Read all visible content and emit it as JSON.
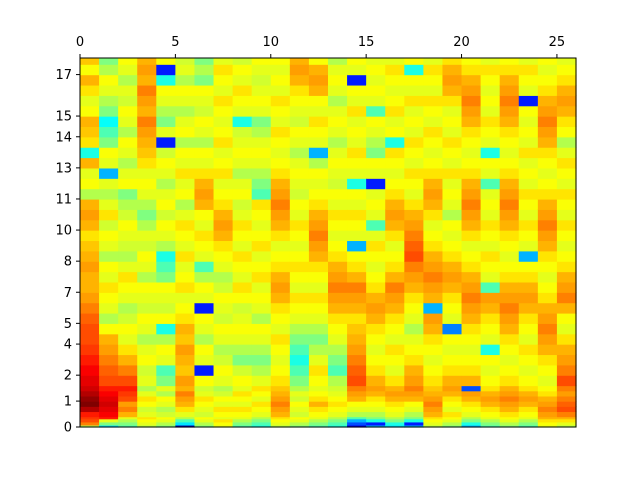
{
  "chart_data": {
    "type": "heatmap",
    "colormap": "jet",
    "title": "",
    "xlabel": "",
    "ylabel": "",
    "x_axis_position": "top",
    "xlim": [
      0,
      26
    ],
    "x_ticks": [
      0,
      5,
      10,
      15,
      20,
      25
    ],
    "y_ticks": [
      0,
      1,
      2,
      4,
      5,
      7,
      8,
      10,
      11,
      13,
      14,
      15,
      17
    ],
    "y_bin_edges": [
      0,
      0.1,
      0.25,
      0.4,
      0.5,
      0.75,
      1.0,
      1.25,
      1.5,
      1.75,
      2.0,
      2.5,
      3.0,
      3.5,
      4.0,
      4.5,
      5.0,
      5.5,
      6.0,
      6.5,
      7.0,
      7.5,
      8.0,
      8.5,
      9.0,
      9.5,
      10.0,
      10.5,
      11.0,
      11.5,
      12.0,
      12.5,
      13.0,
      13.5,
      14.0,
      14.5,
      15.0,
      15.5,
      16.0,
      16.5,
      17.0,
      17.5,
      17.8
    ],
    "column_count": 26,
    "value_range": [
      0,
      1
    ],
    "columns": [
      [
        0.55,
        0.75,
        0.8,
        0.82,
        0.85,
        0.95,
        1.0,
        0.98,
        0.95,
        0.92,
        0.9,
        0.88,
        0.85,
        0.82,
        0.8,
        0.8,
        0.78,
        0.75,
        0.72,
        0.7,
        0.7,
        0.72,
        0.7,
        0.68,
        0.65,
        0.7,
        0.72,
        0.7,
        0.55,
        0.62,
        0.6,
        0.7,
        0.4,
        0.65,
        0.68,
        0.7,
        0.62,
        0.6,
        0.65,
        0.7,
        0.62,
        0.68
      ],
      [
        0.35,
        0.5,
        0.6,
        0.85,
        0.88,
        0.9,
        0.92,
        0.9,
        0.88,
        0.85,
        0.8,
        0.78,
        0.75,
        0.72,
        0.7,
        0.62,
        0.55,
        0.6,
        0.62,
        0.65,
        0.6,
        0.62,
        0.55,
        0.6,
        0.62,
        0.58,
        0.65,
        0.6,
        0.55,
        0.6,
        0.3,
        0.6,
        0.62,
        0.5,
        0.45,
        0.38,
        0.5,
        0.55,
        0.6,
        0.62,
        0.55,
        0.5
      ],
      [
        0.45,
        0.5,
        0.55,
        0.6,
        0.7,
        0.75,
        0.72,
        0.8,
        0.82,
        0.85,
        0.8,
        0.75,
        0.7,
        0.65,
        0.6,
        0.62,
        0.58,
        0.55,
        0.6,
        0.62,
        0.65,
        0.6,
        0.55,
        0.58,
        0.6,
        0.62,
        0.58,
        0.55,
        0.5,
        0.62,
        0.6,
        0.55,
        0.6,
        0.62,
        0.55,
        0.6,
        0.62,
        0.58,
        0.6,
        0.55,
        0.6,
        0.62
      ],
      [
        0.55,
        0.6,
        0.62,
        0.65,
        0.6,
        0.58,
        0.62,
        0.65,
        0.6,
        0.55,
        0.6,
        0.58,
        0.62,
        0.6,
        0.55,
        0.6,
        0.62,
        0.58,
        0.6,
        0.62,
        0.55,
        0.6,
        0.62,
        0.58,
        0.6,
        0.55,
        0.5,
        0.55,
        0.6,
        0.62,
        0.6,
        0.65,
        0.68,
        0.7,
        0.72,
        0.75,
        0.7,
        0.72,
        0.75,
        0.7,
        0.72,
        0.7
      ],
      [
        0.5,
        0.55,
        0.6,
        0.62,
        0.58,
        0.55,
        0.6,
        0.62,
        0.55,
        0.6,
        0.5,
        0.45,
        0.6,
        0.62,
        0.55,
        0.4,
        0.62,
        0.58,
        0.6,
        0.62,
        0.5,
        0.45,
        0.4,
        0.55,
        0.6,
        0.62,
        0.58,
        0.62,
        0.6,
        0.55,
        0.6,
        0.62,
        0.58,
        0.15,
        0.6,
        0.5,
        0.55,
        0.6,
        0.62,
        0.4,
        0.15,
        0.62
      ],
      [
        0.05,
        0.35,
        0.45,
        0.55,
        0.6,
        0.65,
        0.7,
        0.72,
        0.75,
        0.7,
        0.72,
        0.68,
        0.7,
        0.72,
        0.68,
        0.7,
        0.65,
        0.62,
        0.6,
        0.65,
        0.62,
        0.6,
        0.65,
        0.6,
        0.62,
        0.65,
        0.6,
        0.55,
        0.62,
        0.6,
        0.65,
        0.6,
        0.62,
        0.55,
        0.62,
        0.6,
        0.55,
        0.6,
        0.62,
        0.55,
        0.6,
        0.58
      ],
      [
        0.5,
        0.55,
        0.6,
        0.62,
        0.58,
        0.6,
        0.62,
        0.65,
        0.6,
        0.58,
        0.62,
        0.15,
        0.6,
        0.62,
        0.55,
        0.6,
        0.62,
        0.15,
        0.6,
        0.62,
        0.55,
        0.45,
        0.6,
        0.62,
        0.65,
        0.6,
        0.62,
        0.7,
        0.72,
        0.7,
        0.65,
        0.6,
        0.62,
        0.55,
        0.6,
        0.62,
        0.58,
        0.6,
        0.62,
        0.5,
        0.55,
        0.5
      ],
      [
        0.6,
        0.62,
        0.65,
        0.6,
        0.62,
        0.65,
        0.6,
        0.62,
        0.58,
        0.55,
        0.6,
        0.62,
        0.58,
        0.55,
        0.6,
        0.62,
        0.58,
        0.6,
        0.62,
        0.58,
        0.55,
        0.6,
        0.62,
        0.65,
        0.7,
        0.72,
        0.7,
        0.65,
        0.62,
        0.6,
        0.65,
        0.62,
        0.6,
        0.65,
        0.62,
        0.6,
        0.62,
        0.65,
        0.6,
        0.62,
        0.65,
        0.6
      ],
      [
        0.45,
        0.5,
        0.55,
        0.6,
        0.62,
        0.65,
        0.6,
        0.62,
        0.65,
        0.6,
        0.62,
        0.58,
        0.5,
        0.55,
        0.6,
        0.62,
        0.6,
        0.58,
        0.62,
        0.65,
        0.6,
        0.62,
        0.65,
        0.6,
        0.62,
        0.65,
        0.6,
        0.58,
        0.62,
        0.6,
        0.55,
        0.6,
        0.62,
        0.6,
        0.58,
        0.4,
        0.6,
        0.62,
        0.65,
        0.6,
        0.62,
        0.58
      ],
      [
        0.4,
        0.45,
        0.5,
        0.55,
        0.6,
        0.62,
        0.65,
        0.6,
        0.62,
        0.65,
        0.6,
        0.55,
        0.5,
        0.55,
        0.6,
        0.62,
        0.55,
        0.6,
        0.62,
        0.6,
        0.65,
        0.62,
        0.6,
        0.65,
        0.62,
        0.6,
        0.62,
        0.65,
        0.45,
        0.5,
        0.55,
        0.6,
        0.62,
        0.6,
        0.55,
        0.5,
        0.6,
        0.62,
        0.6,
        0.58,
        0.6,
        0.62
      ],
      [
        0.55,
        0.6,
        0.62,
        0.65,
        0.7,
        0.72,
        0.75,
        0.72,
        0.7,
        0.68,
        0.65,
        0.62,
        0.6,
        0.62,
        0.65,
        0.6,
        0.62,
        0.65,
        0.7,
        0.72,
        0.7,
        0.65,
        0.62,
        0.6,
        0.65,
        0.7,
        0.72,
        0.75,
        0.72,
        0.7,
        0.65,
        0.62,
        0.6,
        0.62,
        0.65,
        0.6,
        0.62,
        0.65,
        0.6,
        0.62,
        0.6,
        0.62
      ],
      [
        0.5,
        0.55,
        0.6,
        0.62,
        0.58,
        0.6,
        0.62,
        0.58,
        0.6,
        0.55,
        0.5,
        0.45,
        0.4,
        0.45,
        0.5,
        0.55,
        0.6,
        0.62,
        0.65,
        0.6,
        0.62,
        0.65,
        0.62,
        0.6,
        0.62,
        0.65,
        0.6,
        0.62,
        0.58,
        0.6,
        0.62,
        0.6,
        0.55,
        0.6,
        0.62,
        0.58,
        0.6,
        0.62,
        0.65,
        0.7,
        0.72,
        0.7
      ],
      [
        0.45,
        0.5,
        0.55,
        0.6,
        0.62,
        0.65,
        0.7,
        0.65,
        0.62,
        0.6,
        0.62,
        0.65,
        0.6,
        0.55,
        0.5,
        0.55,
        0.6,
        0.62,
        0.65,
        0.6,
        0.62,
        0.65,
        0.7,
        0.72,
        0.75,
        0.72,
        0.7,
        0.65,
        0.62,
        0.6,
        0.62,
        0.55,
        0.3,
        0.6,
        0.62,
        0.65,
        0.6,
        0.62,
        0.7,
        0.72,
        0.7,
        0.62
      ],
      [
        0.4,
        0.45,
        0.5,
        0.55,
        0.6,
        0.62,
        0.65,
        0.62,
        0.6,
        0.58,
        0.55,
        0.45,
        0.5,
        0.55,
        0.6,
        0.62,
        0.65,
        0.7,
        0.72,
        0.75,
        0.72,
        0.7,
        0.65,
        0.62,
        0.6,
        0.62,
        0.65,
        0.6,
        0.62,
        0.58,
        0.6,
        0.62,
        0.6,
        0.55,
        0.6,
        0.62,
        0.6,
        0.55,
        0.6,
        0.62,
        0.6,
        0.55
      ],
      [
        0.1,
        0.2,
        0.3,
        0.45,
        0.55,
        0.6,
        0.62,
        0.7,
        0.72,
        0.75,
        0.8,
        0.78,
        0.75,
        0.72,
        0.7,
        0.68,
        0.65,
        0.7,
        0.72,
        0.75,
        0.7,
        0.65,
        0.62,
        0.3,
        0.6,
        0.62,
        0.65,
        0.6,
        0.62,
        0.4,
        0.6,
        0.62,
        0.65,
        0.6,
        0.62,
        0.6,
        0.65,
        0.6,
        0.62,
        0.15,
        0.6,
        0.62
      ],
      [
        0.3,
        0.15,
        0.4,
        0.5,
        0.55,
        0.6,
        0.62,
        0.65,
        0.7,
        0.72,
        0.7,
        0.65,
        0.62,
        0.6,
        0.62,
        0.65,
        0.7,
        0.72,
        0.7,
        0.65,
        0.62,
        0.6,
        0.62,
        0.65,
        0.6,
        0.45,
        0.6,
        0.62,
        0.6,
        0.15,
        0.6,
        0.62,
        0.5,
        0.55,
        0.6,
        0.62,
        0.45,
        0.6,
        0.62,
        0.6,
        0.62,
        0.6
      ],
      [
        0.35,
        0.4,
        0.5,
        0.55,
        0.6,
        0.62,
        0.65,
        0.7,
        0.72,
        0.7,
        0.65,
        0.6,
        0.62,
        0.65,
        0.6,
        0.62,
        0.65,
        0.7,
        0.72,
        0.75,
        0.7,
        0.65,
        0.62,
        0.6,
        0.65,
        0.7,
        0.72,
        0.7,
        0.65,
        0.62,
        0.6,
        0.62,
        0.65,
        0.4,
        0.62,
        0.6,
        0.65,
        0.62,
        0.6,
        0.62,
        0.65,
        0.6
      ],
      [
        0.3,
        0.15,
        0.4,
        0.5,
        0.55,
        0.6,
        0.62,
        0.7,
        0.72,
        0.75,
        0.72,
        0.7,
        0.65,
        0.62,
        0.6,
        0.55,
        0.6,
        0.62,
        0.65,
        0.7,
        0.72,
        0.75,
        0.8,
        0.78,
        0.75,
        0.72,
        0.7,
        0.65,
        0.6,
        0.62,
        0.65,
        0.6,
        0.62,
        0.65,
        0.6,
        0.62,
        0.6,
        0.65,
        0.6,
        0.62,
        0.4,
        0.62
      ],
      [
        0.55,
        0.6,
        0.62,
        0.65,
        0.7,
        0.72,
        0.75,
        0.72,
        0.7,
        0.68,
        0.65,
        0.62,
        0.6,
        0.62,
        0.65,
        0.7,
        0.72,
        0.3,
        0.7,
        0.72,
        0.75,
        0.72,
        0.7,
        0.65,
        0.62,
        0.6,
        0.65,
        0.7,
        0.72,
        0.7,
        0.65,
        0.62,
        0.6,
        0.62,
        0.65,
        0.6,
        0.62,
        0.65,
        0.6,
        0.62,
        0.65,
        0.6
      ],
      [
        0.5,
        0.55,
        0.6,
        0.62,
        0.65,
        0.6,
        0.62,
        0.65,
        0.7,
        0.72,
        0.7,
        0.65,
        0.62,
        0.6,
        0.62,
        0.25,
        0.6,
        0.62,
        0.65,
        0.7,
        0.72,
        0.7,
        0.65,
        0.62,
        0.6,
        0.62,
        0.55,
        0.6,
        0.62,
        0.6,
        0.65,
        0.6,
        0.62,
        0.65,
        0.6,
        0.62,
        0.6,
        0.65,
        0.7,
        0.72,
        0.7,
        0.65
      ],
      [
        0.3,
        0.4,
        0.5,
        0.55,
        0.6,
        0.62,
        0.65,
        0.7,
        0.72,
        0.2,
        0.7,
        0.65,
        0.62,
        0.6,
        0.62,
        0.65,
        0.7,
        0.72,
        0.75,
        0.72,
        0.7,
        0.65,
        0.62,
        0.6,
        0.65,
        0.7,
        0.72,
        0.75,
        0.72,
        0.7,
        0.65,
        0.62,
        0.6,
        0.62,
        0.65,
        0.7,
        0.72,
        0.75,
        0.72,
        0.7,
        0.65,
        0.62
      ],
      [
        0.45,
        0.5,
        0.55,
        0.6,
        0.62,
        0.65,
        0.7,
        0.72,
        0.7,
        0.65,
        0.62,
        0.6,
        0.62,
        0.4,
        0.6,
        0.62,
        0.65,
        0.7,
        0.72,
        0.45,
        0.6,
        0.62,
        0.65,
        0.6,
        0.62,
        0.65,
        0.6,
        0.62,
        0.6,
        0.45,
        0.6,
        0.62,
        0.4,
        0.6,
        0.62,
        0.65,
        0.6,
        0.62,
        0.6,
        0.62,
        0.65,
        0.6
      ],
      [
        0.5,
        0.55,
        0.6,
        0.62,
        0.65,
        0.7,
        0.72,
        0.75,
        0.72,
        0.7,
        0.65,
        0.62,
        0.6,
        0.62,
        0.65,
        0.7,
        0.72,
        0.75,
        0.72,
        0.7,
        0.65,
        0.62,
        0.6,
        0.62,
        0.65,
        0.7,
        0.72,
        0.75,
        0.72,
        0.7,
        0.65,
        0.62,
        0.6,
        0.62,
        0.65,
        0.7,
        0.72,
        0.75,
        0.72,
        0.7,
        0.65,
        0.62
      ],
      [
        0.45,
        0.5,
        0.55,
        0.6,
        0.62,
        0.65,
        0.7,
        0.72,
        0.7,
        0.65,
        0.62,
        0.6,
        0.62,
        0.65,
        0.6,
        0.62,
        0.65,
        0.7,
        0.72,
        0.7,
        0.65,
        0.62,
        0.3,
        0.6,
        0.62,
        0.65,
        0.6,
        0.62,
        0.65,
        0.6,
        0.62,
        0.6,
        0.65,
        0.6,
        0.62,
        0.6,
        0.62,
        0.15,
        0.6,
        0.62,
        0.65,
        0.6
      ],
      [
        0.6,
        0.62,
        0.65,
        0.7,
        0.72,
        0.75,
        0.72,
        0.7,
        0.65,
        0.62,
        0.6,
        0.62,
        0.65,
        0.7,
        0.72,
        0.75,
        0.72,
        0.7,
        0.65,
        0.62,
        0.6,
        0.62,
        0.65,
        0.7,
        0.72,
        0.75,
        0.72,
        0.7,
        0.65,
        0.62,
        0.6,
        0.62,
        0.65,
        0.7,
        0.72,
        0.75,
        0.72,
        0.7,
        0.65,
        0.62,
        0.6,
        0.62
      ],
      [
        0.55,
        0.6,
        0.65,
        0.7,
        0.75,
        0.8,
        0.78,
        0.75,
        0.72,
        0.75,
        0.8,
        0.75,
        0.72,
        0.7,
        0.65,
        0.6,
        0.62,
        0.7,
        0.75,
        0.72,
        0.7,
        0.65,
        0.62,
        0.6,
        0.62,
        0.65,
        0.6,
        0.62,
        0.65,
        0.6,
        0.62,
        0.65,
        0.6,
        0.55,
        0.62,
        0.65,
        0.7,
        0.72,
        0.7,
        0.65,
        0.62,
        0.6
      ]
    ]
  }
}
